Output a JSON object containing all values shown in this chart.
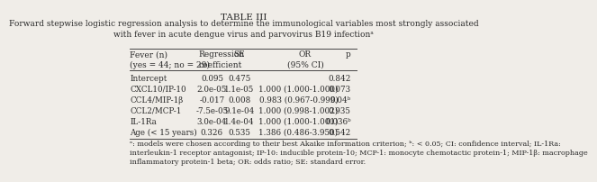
{
  "title": "TABLE III",
  "subtitle": "Forward stepwise logistic regression analysis to determine the immunological variables most strongly associated\nwith fever in acute dengue virus and parvovirus B19 infectionᵃ",
  "header_col1": "Fever (n)\n(yes = 44; no = 29)",
  "header_col2": "Regression\ncoefficient",
  "header_col3": "SE",
  "header_col4": "OR\n(95% CI)",
  "header_col5": "p",
  "rows": [
    [
      "Intercept",
      "0.095",
      "0.475",
      "",
      "0.842"
    ],
    [
      "CXCL10/IP-10",
      "2.0e-05",
      "1.1e-05",
      "1.000 (1.000-1.000)",
      "0.073"
    ],
    [
      "CCL4/MIP-1β",
      "-0.017",
      "0.008",
      "0.983 (0.967-0.999)",
      "0.04ᵇ"
    ],
    [
      "CCL2/MCP-1",
      "-7.5e-05",
      "9.1e-04",
      "1.000 (0.998-1.002)",
      "0.935"
    ],
    [
      "IL-1Ra",
      "3.0e-04",
      "1.4e-04",
      "1.000 (1.000-1.001)",
      "0.036ᵇ"
    ],
    [
      "Age (< 15 years)",
      "0.326",
      "0.535",
      "1.386 (0.486-3.950)",
      "0.542"
    ]
  ],
  "footnote": "ᵃ: models were chosen according to their best Akaike information criterion; ᵇ: < 0.05; CI: confidence interval; IL-1Ra:\ninterleukin-1 receptor antagonist; IP-10: inducible protein-10; MCP-1: monocyte chemotactic protein-1; MIP-1β: macrophage\ninflammatory protein-1 beta; OR: odds ratio; SE: standard error.",
  "bg_color": "#f0ede8",
  "text_color": "#2a2a2a",
  "title_fontsize": 7.5,
  "subtitle_fontsize": 6.5,
  "header_fontsize": 6.5,
  "body_fontsize": 6.3,
  "footnote_fontsize": 5.8
}
